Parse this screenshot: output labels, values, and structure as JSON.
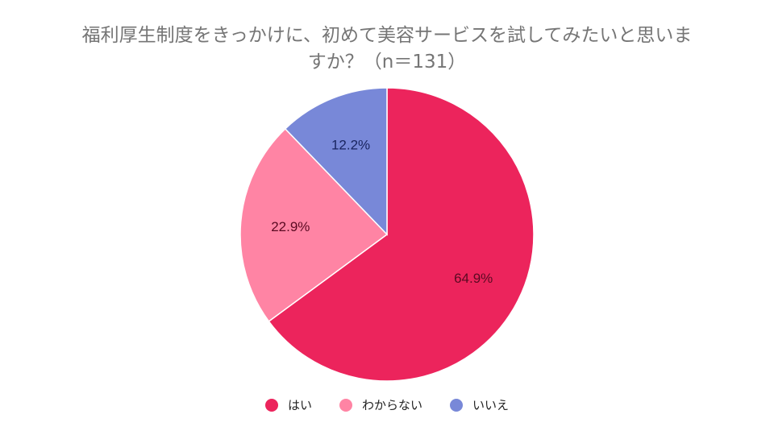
{
  "title": {
    "line1": "福利厚生制度をきっかけに、初めて美容サービスを試してみたいと思いま",
    "line2": "すか？（n＝131）"
  },
  "chart_data": {
    "type": "pie",
    "title": "福利厚生制度をきっかけに、初めて美容サービスを試してみたいと思いますか？（n＝131）",
    "categories": [
      "はい",
      "わからない",
      "いいえ"
    ],
    "values": [
      64.9,
      22.9,
      12.2
    ],
    "unit": "%",
    "colors": [
      "#EC245C",
      "#FF84A4",
      "#7888D8"
    ],
    "data_labels": [
      "64.9%",
      "22.9%",
      "12.2%"
    ],
    "start_angle": "12 o'clock, clockwise",
    "legend_position": "bottom"
  },
  "legend": [
    {
      "label": "はい",
      "color": "#EC245C"
    },
    {
      "label": "わからない",
      "color": "#FF84A4"
    },
    {
      "label": "いいえ",
      "color": "#7888D8"
    }
  ]
}
